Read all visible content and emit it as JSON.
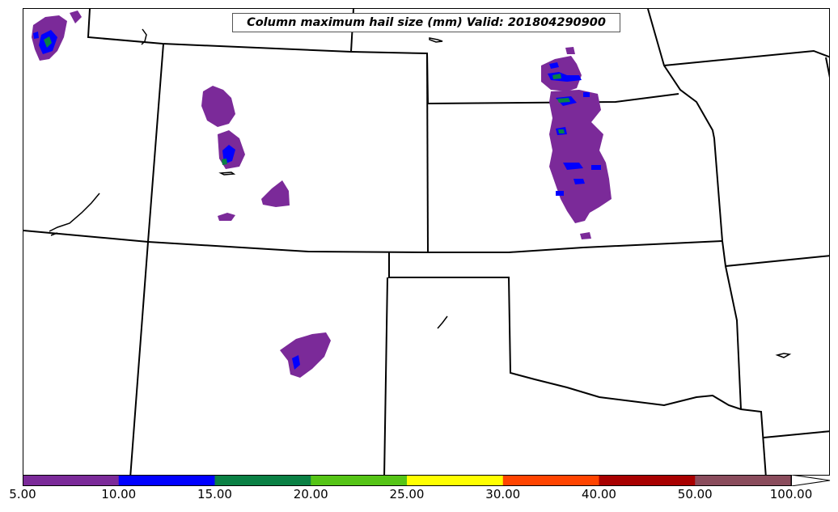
{
  "title": "Column maximum hail size (mm) Valid: 201804290900",
  "colorbar": {
    "extend": "max",
    "ticks": [
      "5.00",
      "10.00",
      "15.00",
      "20.00",
      "25.00",
      "30.00",
      "40.00",
      "50.00",
      "100.00"
    ],
    "colors": [
      "#7b2a99",
      "#0000ff",
      "#0a8044",
      "#55c416",
      "#ffff00",
      "#ff4400",
      "#a80000",
      "#8a4c5c"
    ]
  },
  "map": {
    "background": "#ffffff",
    "border_color": "#000000"
  }
}
